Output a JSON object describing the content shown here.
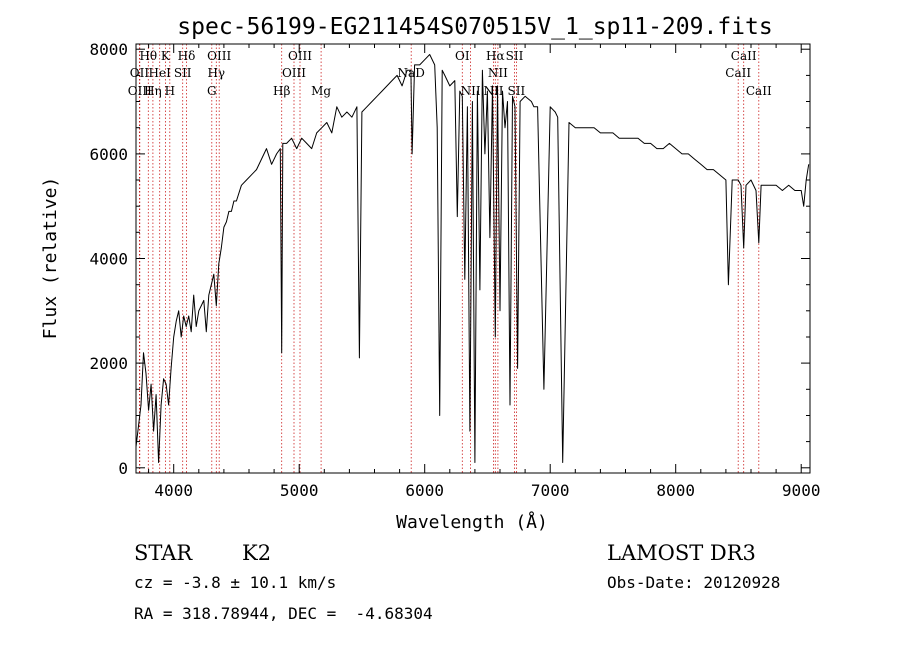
{
  "chart_data": {
    "type": "line",
    "title": "spec-56199-EG211454S070515V_1_sp11-209.fits",
    "xlabel": "Wavelength (Å)",
    "ylabel": "Flux (relative)",
    "xlim": [
      3700,
      9070
    ],
    "ylim": [
      -100,
      8100
    ],
    "xticks": [
      4000,
      5000,
      6000,
      7000,
      8000,
      9000
    ],
    "yticks": [
      0,
      2000,
      4000,
      6000,
      8000
    ],
    "grid": false,
    "series": [
      {
        "x": [
          3700,
          3720,
          3740,
          3760,
          3780,
          3800,
          3820,
          3840,
          3860,
          3880,
          3900,
          3920,
          3940,
          3960,
          3980,
          4000,
          4020,
          4040,
          4060,
          4080,
          4100,
          4120,
          4140,
          4160,
          4180,
          4200,
          4220,
          4240,
          4260,
          4280,
          4300,
          4320,
          4340,
          4360,
          4380,
          4400,
          4420,
          4440,
          4460,
          4480,
          4500,
          4540,
          4580,
          4620,
          4660,
          4700,
          4740,
          4780,
          4820,
          4850,
          4861,
          4870,
          4900,
          4940,
          4980,
          5020,
          5060,
          5100,
          5140,
          5180,
          5220,
          5260,
          5300,
          5340,
          5380,
          5420,
          5460,
          5480,
          5500,
          5540,
          5580,
          5620,
          5660,
          5700,
          5740,
          5780,
          5820,
          5860,
          5890,
          5900,
          5920,
          5960,
          6000,
          6040,
          6080,
          6100,
          6120,
          6140,
          6160,
          6200,
          6240,
          6260,
          6280,
          6300,
          6320,
          6340,
          6360,
          6380,
          6400,
          6420,
          6440,
          6460,
          6480,
          6500,
          6520,
          6540,
          6563,
          6580,
          6600,
          6620,
          6640,
          6660,
          6680,
          6700,
          6720,
          6740,
          6760,
          6800,
          6850,
          6870,
          6900,
          6950,
          7000,
          7040,
          7060,
          7100,
          7150,
          7200,
          7250,
          7300,
          7350,
          7400,
          7450,
          7500,
          7550,
          7600,
          7650,
          7700,
          7750,
          7800,
          7850,
          7900,
          7950,
          8000,
          8050,
          8100,
          8150,
          8200,
          8250,
          8300,
          8350,
          8400,
          8420,
          8450,
          8498,
          8520,
          8542,
          8560,
          8600,
          8640,
          8662,
          8680,
          8720,
          8760,
          8800,
          8850,
          8900,
          8950,
          9000,
          9020,
          9040,
          9060
        ],
        "y": [
          400,
          800,
          1200,
          2200,
          1800,
          1100,
          1600,
          700,
          1400,
          100,
          1200,
          1700,
          1600,
          1200,
          1900,
          2500,
          2800,
          3000,
          2500,
          2900,
          2700,
          2900,
          2600,
          3300,
          2700,
          3000,
          3100,
          3200,
          2600,
          3300,
          3500,
          3700,
          3100,
          3900,
          4200,
          4600,
          4700,
          4900,
          4900,
          5100,
          5100,
          5400,
          5500,
          5600,
          5700,
          5900,
          6100,
          5800,
          6000,
          6100,
          2200,
          6200,
          6200,
          6300,
          6100,
          6300,
          6200,
          6100,
          6400,
          6500,
          6600,
          6400,
          6900,
          6700,
          6800,
          6700,
          6900,
          2100,
          6800,
          6900,
          7000,
          7100,
          7200,
          7300,
          7400,
          7500,
          7300,
          7600,
          7600,
          6000,
          7700,
          7700,
          7800,
          7900,
          7700,
          6500,
          1000,
          7600,
          7500,
          7300,
          7400,
          4800,
          7200,
          7100,
          3600,
          6900,
          700,
          7000,
          100,
          7200,
          3400,
          7600,
          6000,
          7200,
          4400,
          7300,
          2500,
          7300,
          3000,
          7200,
          6500,
          7000,
          1200,
          7100,
          6900,
          1900,
          7000,
          7100,
          7000,
          6900,
          6900,
          1500,
          6900,
          6800,
          6700,
          100,
          6600,
          6500,
          6500,
          6500,
          6500,
          6400,
          6400,
          6400,
          6300,
          6300,
          6300,
          6300,
          6200,
          6200,
          6100,
          6100,
          6200,
          6100,
          6000,
          6000,
          5900,
          5800,
          5700,
          5700,
          5600,
          5500,
          3500,
          5500,
          5500,
          5400,
          4200,
          5400,
          5500,
          5300,
          4300,
          5400,
          5400,
          5400,
          5400,
          5300,
          5400,
          5300,
          5300,
          5000,
          5500,
          5800
        ]
      }
    ],
    "line_labels": [
      {
        "label": "Hθ",
        "wl": 3798,
        "row": 1
      },
      {
        "label": "OII",
        "wl": 3727,
        "row": 2
      },
      {
        "label": "OIII",
        "wl": 3730,
        "row": 3
      },
      {
        "label": "K",
        "wl": 3934,
        "row": 1
      },
      {
        "label": "HeI",
        "wl": 3889,
        "row": 2
      },
      {
        "label": "Hη",
        "wl": 3835,
        "row": 3
      },
      {
        "label": "H",
        "wl": 3969,
        "row": 3
      },
      {
        "label": "Hδ",
        "wl": 4102,
        "row": 1
      },
      {
        "label": "SII",
        "wl": 4072,
        "row": 2
      },
      {
        "label": "OIII",
        "wl": 4363,
        "row": 1
      },
      {
        "label": "Hγ",
        "wl": 4340,
        "row": 2
      },
      {
        "label": "G",
        "wl": 4304,
        "row": 3
      },
      {
        "label": "Hβ",
        "wl": 4861,
        "row": 3
      },
      {
        "label": "OIII",
        "wl": 5007,
        "row": 1
      },
      {
        "label": "OIII",
        "wl": 4959,
        "row": 2
      },
      {
        "label": "Mg",
        "wl": 5175,
        "row": 3
      },
      {
        "label": "NaD",
        "wl": 5893,
        "row": 2
      },
      {
        "label": "OI",
        "wl": 6300,
        "row": 1
      },
      {
        "label": "NII",
        "wl": 6366,
        "row": 3
      },
      {
        "label": "Hα",
        "wl": 6563,
        "row": 1
      },
      {
        "label": "SII",
        "wl": 6716,
        "row": 1
      },
      {
        "label": "NII",
        "wl": 6583,
        "row": 2
      },
      {
        "label": "NII",
        "wl": 6548,
        "row": 3
      },
      {
        "label": "SII",
        "wl": 6731,
        "row": 3
      },
      {
        "label": "CaII",
        "wl": 8542,
        "row": 1
      },
      {
        "label": "CaII",
        "wl": 8498,
        "row": 2
      },
      {
        "label": "CaII",
        "wl": 8662,
        "row": 3
      }
    ],
    "line_markers": [
      3727,
      3730,
      3798,
      3835,
      3889,
      3934,
      3969,
      4072,
      4102,
      4304,
      4340,
      4363,
      4861,
      4959,
      5007,
      5175,
      5893,
      6300,
      6366,
      6548,
      6563,
      6583,
      6716,
      6731,
      8498,
      8542,
      8662
    ]
  },
  "info": {
    "object_class": "STAR",
    "subclass": "K2",
    "survey": "LAMOST DR3",
    "redshift": "cz = -3.8 ± 10.1 km/s",
    "obs_date": "Obs-Date: 20120928",
    "coords": "RA = 318.78944, DEC =  -4.68304"
  },
  "colors": {
    "line_marker": "#cc2222",
    "spectrum": "#000000"
  }
}
